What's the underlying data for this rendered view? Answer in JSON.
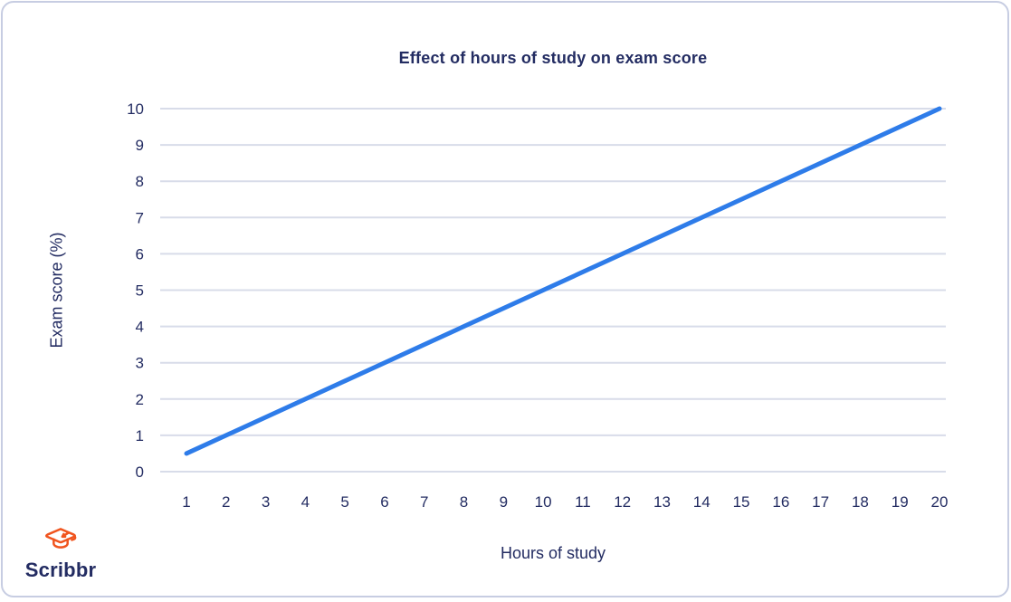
{
  "chart_data": {
    "type": "line",
    "title": "Effect of hours of study on exam score",
    "xlabel": "Hours of study",
    "ylabel": "Exam score (%)",
    "x_ticks": [
      1,
      2,
      3,
      4,
      5,
      6,
      7,
      8,
      9,
      10,
      11,
      12,
      13,
      14,
      15,
      16,
      17,
      18,
      19,
      20
    ],
    "y_ticks": [
      0,
      1,
      2,
      3,
      4,
      5,
      6,
      7,
      8,
      9,
      10
    ],
    "xlim": [
      1,
      20
    ],
    "ylim": [
      0,
      10
    ],
    "grid": "horizontal",
    "legend": "none",
    "series": [
      {
        "points": [
          [
            1,
            0.5
          ],
          [
            20,
            10
          ]
        ]
      }
    ]
  },
  "branding": {
    "logo_text": "Scribbr"
  },
  "colors": {
    "navy": "#232c62",
    "line_blue": "#2e7ce9",
    "grid": "#d8dce9",
    "border": "#c7cde2",
    "logo_orange": "#f0541e"
  }
}
